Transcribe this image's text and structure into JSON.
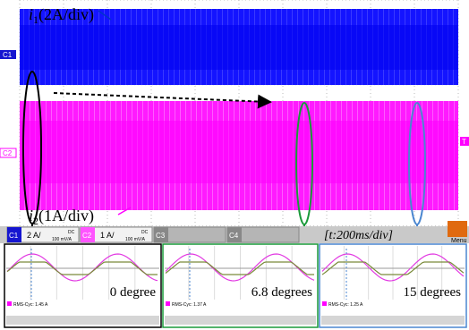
{
  "waveform": {
    "label_top": {
      "var": "i",
      "sub": "1",
      "scale": "(2A/div)"
    },
    "label_bottom": {
      "var": "i",
      "sub": "2",
      "scale": "(1A/div)"
    },
    "markers": {
      "c1": "C1",
      "c2": "C2",
      "trigger": "T"
    }
  },
  "status_bar": {
    "channels": [
      {
        "name": "C1",
        "scale": "2 A/",
        "coupling": "DC",
        "probe": "100 mV/A"
      },
      {
        "name": "C2",
        "scale": "1 A/",
        "coupling": "DC",
        "probe": "100 mV/A"
      },
      {
        "name": "C3"
      },
      {
        "name": "C4"
      }
    ],
    "timebase": "[t:200ms/div]",
    "menu": "Menu"
  },
  "insets": [
    {
      "label": "0 degree",
      "rms": "RMS-Cyc: 1.45 A"
    },
    {
      "label": "6.8 degrees",
      "rms": "RMS-Cyc: 1.37 A"
    },
    {
      "label": "15 degrees",
      "rms": "RMS-Cyc: 1.25 A"
    }
  ]
}
